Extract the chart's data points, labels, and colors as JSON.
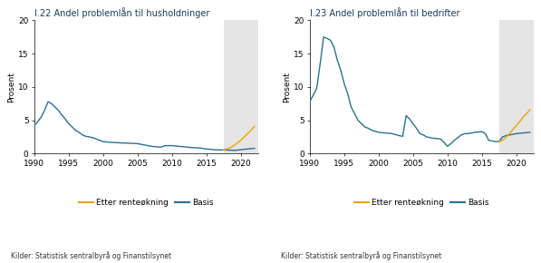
{
  "title1": "I.22 Andel problemlån til husholdninger",
  "title2": "I.23 Andel problemlån til bedrifter",
  "ylabel": "Prosent",
  "source": "Kilder: Statistisk sentralbyrå og Finanstilsynet",
  "legend_etter": "Etter renteøkning",
  "legend_basis": "Basis",
  "color_etter": "#f0a500",
  "color_basis": "#2a7090",
  "shade_start": 2017.5,
  "shade_end": 2022.5,
  "shade_color": "#e5e5e5",
  "ylim": [
    0,
    20
  ],
  "yticks": [
    0,
    5,
    10,
    15,
    20
  ],
  "xlim": [
    1990,
    2022.5
  ],
  "xticks": [
    1990,
    1995,
    2000,
    2005,
    2010,
    2015,
    2020
  ],
  "hh_basis_years": [
    1990,
    1990.5,
    1991,
    1991.5,
    1992,
    1992.5,
    1993,
    1993.5,
    1994,
    1994.5,
    1995,
    1995.5,
    1996,
    1996.5,
    1997,
    1997.5,
    1998,
    1998.5,
    1999,
    1999.5,
    2000,
    2000.5,
    2001,
    2001.5,
    2002,
    2002.5,
    2003,
    2003.5,
    2004,
    2004.5,
    2005,
    2005.5,
    2006,
    2006.5,
    2007,
    2007.5,
    2008,
    2008.5,
    2009,
    2009.5,
    2010,
    2010.5,
    2011,
    2011.5,
    2012,
    2012.5,
    2013,
    2013.5,
    2014,
    2014.5,
    2015,
    2015.5,
    2016,
    2016.5,
    2017,
    2017.5,
    2018,
    2018.5,
    2019,
    2019.5,
    2020,
    2020.5,
    2021,
    2021.5,
    2022
  ],
  "hh_basis_vals": [
    4.2,
    4.8,
    5.5,
    6.5,
    7.8,
    7.5,
    7.0,
    6.5,
    5.8,
    5.2,
    4.5,
    4.0,
    3.5,
    3.2,
    2.8,
    2.6,
    2.5,
    2.4,
    2.2,
    2.0,
    1.8,
    1.75,
    1.7,
    1.68,
    1.65,
    1.62,
    1.6,
    1.58,
    1.55,
    1.53,
    1.5,
    1.4,
    1.3,
    1.2,
    1.1,
    1.05,
    1.0,
    1.0,
    1.2,
    1.2,
    1.2,
    1.15,
    1.1,
    1.05,
    1.0,
    0.95,
    0.9,
    0.88,
    0.85,
    0.78,
    0.7,
    0.65,
    0.6,
    0.58,
    0.55,
    0.55,
    0.55,
    0.52,
    0.5,
    0.52,
    0.6,
    0.65,
    0.7,
    0.75,
    0.8
  ],
  "hh_etter_years": [
    2017.5,
    2018,
    2018.5,
    2019,
    2019.5,
    2020,
    2020.5,
    2021,
    2021.5,
    2022
  ],
  "hh_etter_vals": [
    0.55,
    0.7,
    0.9,
    1.2,
    1.6,
    2.0,
    2.5,
    3.0,
    3.5,
    4.1
  ],
  "corp_basis_years": [
    1990,
    1990.5,
    1991,
    1991.5,
    1992,
    1992.5,
    1993,
    1993.5,
    1994,
    1994.5,
    1995,
    1995.5,
    1996,
    1996.5,
    1997,
    1997.5,
    1998,
    1998.5,
    1999,
    1999.5,
    2000,
    2000.5,
    2001,
    2001.5,
    2002,
    2002.5,
    2003,
    2003.5,
    2004,
    2004.5,
    2005,
    2005.5,
    2006,
    2006.5,
    2007,
    2007.5,
    2008,
    2008.5,
    2009,
    2009.5,
    2010,
    2010.5,
    2011,
    2011.5,
    2012,
    2012.5,
    2013,
    2013.5,
    2014,
    2014.5,
    2015,
    2015.5,
    2016,
    2016.5,
    2017,
    2017.5,
    2018,
    2018.5,
    2019,
    2019.5,
    2020,
    2020.5,
    2021,
    2021.5,
    2022
  ],
  "corp_basis_vals": [
    7.8,
    8.8,
    9.8,
    13.5,
    17.5,
    17.3,
    17.0,
    16.0,
    14.0,
    12.5,
    10.5,
    9.0,
    7.0,
    6.0,
    5.0,
    4.5,
    4.0,
    3.8,
    3.5,
    3.35,
    3.2,
    3.15,
    3.1,
    3.05,
    3.0,
    2.85,
    2.7,
    2.6,
    5.7,
    5.2,
    4.5,
    3.8,
    3.0,
    2.8,
    2.5,
    2.4,
    2.3,
    2.25,
    2.2,
    1.7,
    1.1,
    1.5,
    2.0,
    2.4,
    2.8,
    3.0,
    3.0,
    3.1,
    3.2,
    3.25,
    3.3,
    3.0,
    2.0,
    1.9,
    1.8,
    1.8,
    2.5,
    2.7,
    2.8,
    2.9,
    3.0,
    3.05,
    3.1,
    3.15,
    3.2
  ],
  "corp_etter_years": [
    2017.5,
    2018,
    2018.5,
    2019,
    2019.5,
    2020,
    2020.5,
    2021,
    2021.5,
    2022
  ],
  "corp_etter_vals": [
    1.8,
    2.0,
    2.4,
    3.0,
    3.6,
    4.2,
    4.8,
    5.5,
    6.0,
    6.6
  ]
}
